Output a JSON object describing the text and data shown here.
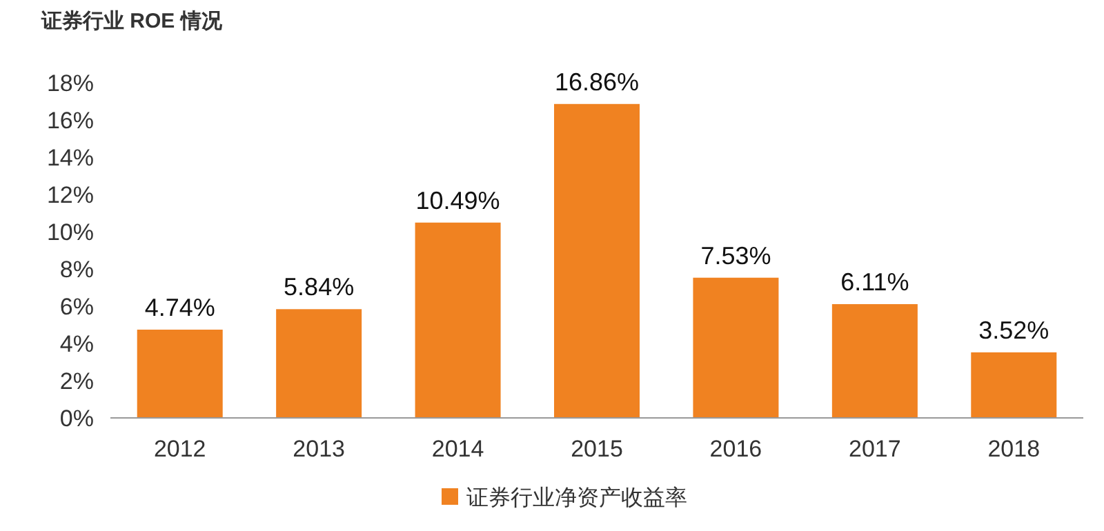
{
  "chart_data": {
    "type": "bar",
    "title": "证券行业 ROE 情况",
    "categories": [
      "2012",
      "2013",
      "2014",
      "2015",
      "2016",
      "2017",
      "2018"
    ],
    "series": [
      {
        "name": "证券行业净资产收益率",
        "color": "#f08221",
        "values": [
          4.74,
          5.84,
          10.49,
          16.86,
          7.53,
          6.11,
          3.52
        ],
        "value_labels": [
          "4.74%",
          "5.84%",
          "10.49%",
          "16.86%",
          "7.53%",
          "6.11%",
          "3.52%"
        ]
      }
    ],
    "ylim": [
      0,
      18
    ],
    "yticks": [
      {
        "value": 0,
        "label": "0%"
      },
      {
        "value": 2,
        "label": "2%"
      },
      {
        "value": 4,
        "label": "4%"
      },
      {
        "value": 6,
        "label": "6%"
      },
      {
        "value": 8,
        "label": "8%"
      },
      {
        "value": 10,
        "label": "10%"
      },
      {
        "value": 12,
        "label": "12%"
      },
      {
        "value": 14,
        "label": "14%"
      },
      {
        "value": 16,
        "label": "16%"
      },
      {
        "value": 18,
        "label": "18%"
      }
    ],
    "grid": false,
    "legend": "bottom"
  }
}
